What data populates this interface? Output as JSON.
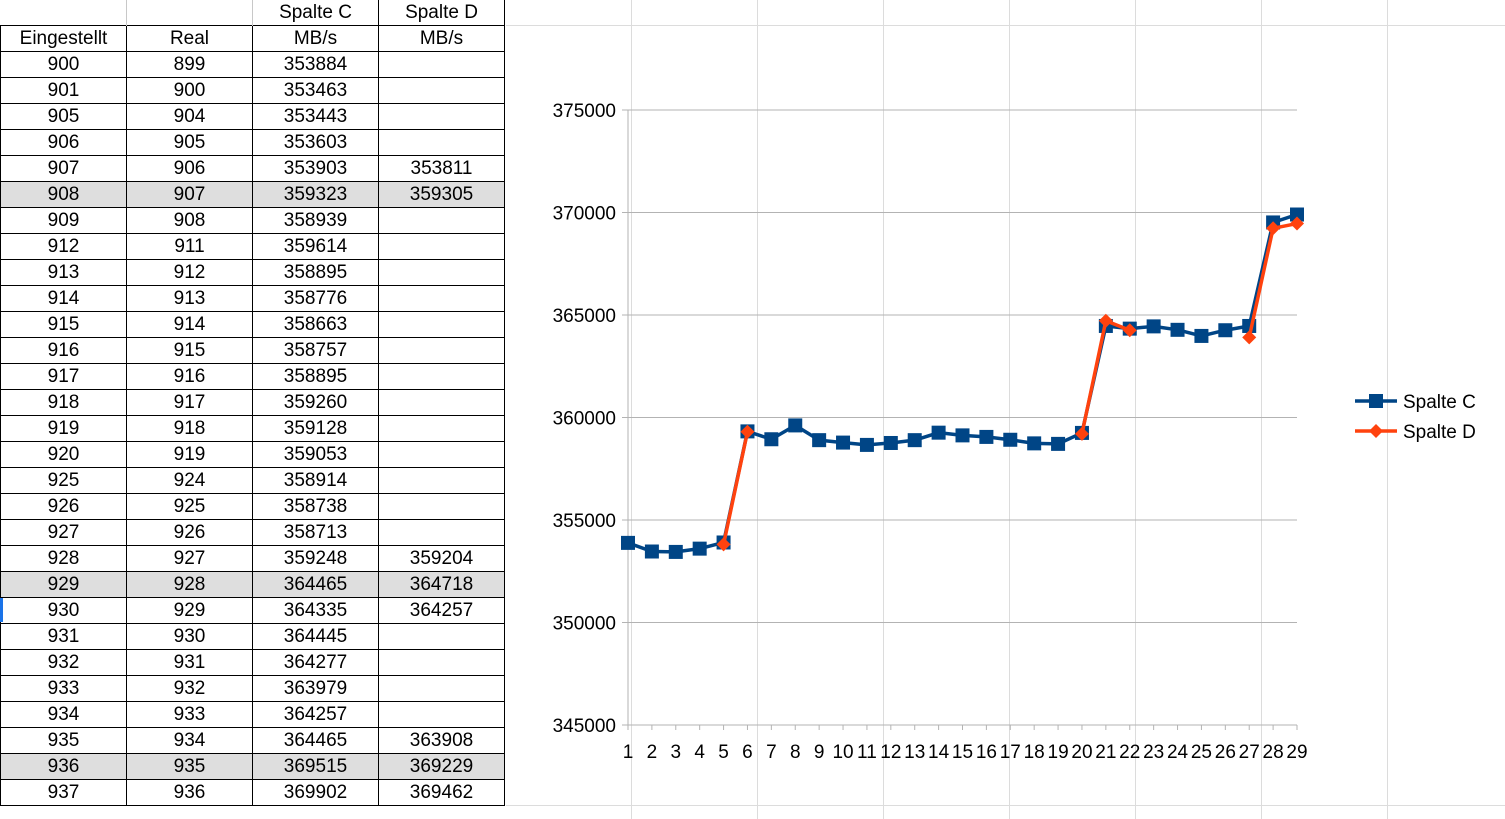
{
  "sheet": {
    "header_row1": [
      "",
      "",
      "Spalte C",
      "Spalte D"
    ],
    "header_row2": [
      "Eingestellt",
      "Real",
      "MB/s",
      "MB/s"
    ],
    "rows": [
      {
        "eingestellt": "900",
        "real": "899",
        "c": "353884",
        "d": ""
      },
      {
        "eingestellt": "901",
        "real": "900",
        "c": "353463",
        "d": ""
      },
      {
        "eingestellt": "905",
        "real": "904",
        "c": "353443",
        "d": ""
      },
      {
        "eingestellt": "906",
        "real": "905",
        "c": "353603",
        "d": ""
      },
      {
        "eingestellt": "907",
        "real": "906",
        "c": "353903",
        "d": "353811"
      },
      {
        "eingestellt": "908",
        "real": "907",
        "c": "359323",
        "d": "359305",
        "highlight": true
      },
      {
        "eingestellt": "909",
        "real": "908",
        "c": "358939",
        "d": ""
      },
      {
        "eingestellt": "912",
        "real": "911",
        "c": "359614",
        "d": ""
      },
      {
        "eingestellt": "913",
        "real": "912",
        "c": "358895",
        "d": ""
      },
      {
        "eingestellt": "914",
        "real": "913",
        "c": "358776",
        "d": ""
      },
      {
        "eingestellt": "915",
        "real": "914",
        "c": "358663",
        "d": ""
      },
      {
        "eingestellt": "916",
        "real": "915",
        "c": "358757",
        "d": ""
      },
      {
        "eingestellt": "917",
        "real": "916",
        "c": "358895",
        "d": ""
      },
      {
        "eingestellt": "918",
        "real": "917",
        "c": "359260",
        "d": ""
      },
      {
        "eingestellt": "919",
        "real": "918",
        "c": "359128",
        "d": ""
      },
      {
        "eingestellt": "920",
        "real": "919",
        "c": "359053",
        "d": ""
      },
      {
        "eingestellt": "925",
        "real": "924",
        "c": "358914",
        "d": ""
      },
      {
        "eingestellt": "926",
        "real": "925",
        "c": "358738",
        "d": ""
      },
      {
        "eingestellt": "927",
        "real": "926",
        "c": "358713",
        "d": ""
      },
      {
        "eingestellt": "928",
        "real": "927",
        "c": "359248",
        "d": "359204"
      },
      {
        "eingestellt": "929",
        "real": "928",
        "c": "364465",
        "d": "364718",
        "highlight": true
      },
      {
        "eingestellt": "930",
        "real": "929",
        "c": "364335",
        "d": "364257"
      },
      {
        "eingestellt": "931",
        "real": "930",
        "c": "364445",
        "d": ""
      },
      {
        "eingestellt": "932",
        "real": "931",
        "c": "364277",
        "d": ""
      },
      {
        "eingestellt": "933",
        "real": "932",
        "c": "363979",
        "d": ""
      },
      {
        "eingestellt": "934",
        "real": "933",
        "c": "364257",
        "d": ""
      },
      {
        "eingestellt": "935",
        "real": "934",
        "c": "364465",
        "d": "363908"
      },
      {
        "eingestellt": "936",
        "real": "935",
        "c": "369515",
        "d": "369229",
        "highlight": true
      },
      {
        "eingestellt": "937",
        "real": "936",
        "c": "369902",
        "d": "369462"
      }
    ]
  },
  "chart_data": {
    "type": "line",
    "x": [
      1,
      2,
      3,
      4,
      5,
      6,
      7,
      8,
      9,
      10,
      11,
      12,
      13,
      14,
      15,
      16,
      17,
      18,
      19,
      20,
      21,
      22,
      23,
      24,
      25,
      26,
      27,
      28,
      29
    ],
    "ylim": [
      345000,
      375000
    ],
    "yticks": [
      345000,
      350000,
      355000,
      360000,
      365000,
      370000,
      375000
    ],
    "grid": true,
    "legend": "right",
    "series": [
      {
        "name": "Spalte C",
        "color": "#004586",
        "marker": "square",
        "values": [
          353884,
          353463,
          353443,
          353603,
          353903,
          359323,
          358939,
          359614,
          358895,
          358776,
          358663,
          358757,
          358895,
          359260,
          359128,
          359053,
          358914,
          358738,
          358713,
          359248,
          364465,
          364335,
          364445,
          364277,
          363979,
          364257,
          364465,
          369515,
          369902
        ]
      },
      {
        "name": "Spalte D",
        "color": "#ff420e",
        "marker": "diamond",
        "points": [
          [
            5,
            353811
          ],
          [
            6,
            359305
          ],
          [
            20,
            359204
          ],
          [
            21,
            364718
          ],
          [
            22,
            364257
          ],
          [
            27,
            363908
          ],
          [
            28,
            369229
          ],
          [
            29,
            369462
          ]
        ]
      }
    ]
  }
}
